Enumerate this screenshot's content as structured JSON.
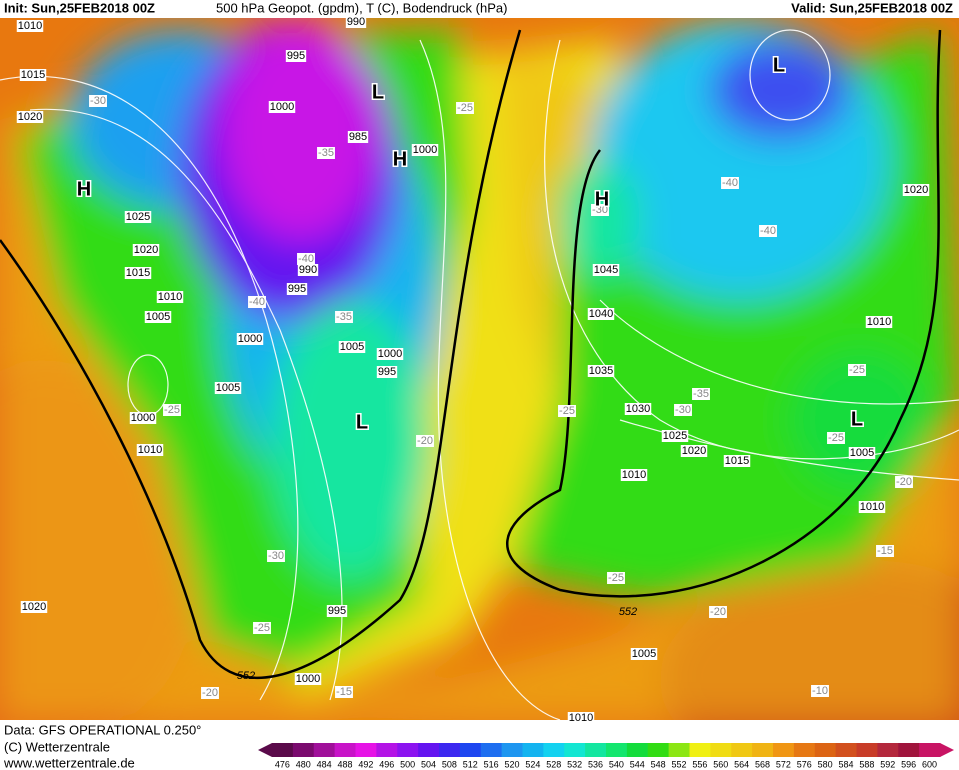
{
  "header": {
    "init": "Init: Sun,25FEB2018 00Z",
    "title": "500 hPa Geopot. (gpdm), T (C), Bodendruck (hPa)",
    "valid": "Valid: Sun,25FEB2018 00Z"
  },
  "footer": {
    "lines": [
      "Data: GFS OPERATIONAL 0.250°",
      "(C) Wetterzentrale",
      "www.wetterzentrale.de"
    ]
  },
  "colorbar": {
    "ticks": [
      476,
      480,
      484,
      488,
      492,
      496,
      500,
      504,
      508,
      512,
      516,
      520,
      524,
      528,
      532,
      536,
      540,
      544,
      548,
      552,
      556,
      560,
      564,
      568,
      572,
      576,
      580,
      584,
      588,
      592,
      596,
      600
    ],
    "colors": [
      "#5a0a4a",
      "#7a0a6e",
      "#a0109a",
      "#c814c8",
      "#e614e6",
      "#b414e6",
      "#8c14f0",
      "#6414f0",
      "#3c28f0",
      "#1e46f0",
      "#1e6ef0",
      "#1e96f0",
      "#14b4f0",
      "#14d2f0",
      "#14e6d2",
      "#14e6a0",
      "#14e66e",
      "#14dc3c",
      "#32dc14",
      "#8ce614",
      "#f0f014",
      "#f0dc14",
      "#f0c814",
      "#f0b414",
      "#f09614",
      "#e67814",
      "#dc6414",
      "#d2501e",
      "#c83c28",
      "#b4283c",
      "#a0143c",
      "#c81464"
    ]
  },
  "map": {
    "pressure_labels": [
      "1010",
      "1015",
      "1020",
      "1025",
      "1020",
      "1015",
      "1010",
      "1005",
      "1000",
      "995",
      "1000",
      "985",
      "1000",
      "990",
      "995",
      "990",
      "1005",
      "1000",
      "995",
      "1005",
      "1000",
      "1010",
      "1045",
      "1040",
      "1035",
      "1030",
      "1025",
      "1020",
      "1015",
      "1010",
      "1020",
      "1010",
      "1005",
      "1010",
      "995",
      "1000",
      "1005",
      "1020",
      "1010"
    ],
    "temperature_labels": [
      "-30",
      "-35",
      "-25",
      "-30",
      "-40",
      "-40",
      "-40",
      "-40",
      "-35",
      "-25",
      "-20",
      "-25",
      "-30",
      "-35",
      "-25",
      "-25",
      "-20",
      "-15",
      "-25",
      "-20",
      "-30",
      "-25",
      "-20",
      "-15",
      "-10"
    ],
    "height_labels": [
      "552",
      "552"
    ],
    "centers": [
      "H",
      "L",
      "H",
      "L",
      "H",
      "L",
      "L"
    ]
  }
}
